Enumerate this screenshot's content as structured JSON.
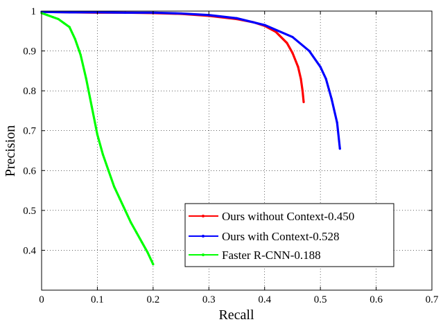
{
  "chart_data": {
    "type": "line",
    "title": "",
    "xlabel": "Recall",
    "ylabel": "Precision",
    "xlim": [
      0,
      0.7
    ],
    "ylim": [
      0.3,
      1.0
    ],
    "x_ticks": [
      "0",
      "0.1",
      "0.2",
      "0.3",
      "0.4",
      "0.5",
      "0.6",
      "0.7"
    ],
    "y_ticks": [
      "0.4",
      "0.5",
      "0.6",
      "0.7",
      "0.8",
      "0.9",
      "1"
    ],
    "grid": true,
    "legend_position": "bottom-right",
    "series": [
      {
        "name": "Ours without Context-0.450",
        "color": "#ff0000",
        "x": [
          0.0,
          0.05,
          0.1,
          0.15,
          0.2,
          0.25,
          0.3,
          0.35,
          0.38,
          0.4,
          0.42,
          0.44,
          0.45,
          0.46,
          0.465,
          0.468,
          0.47
        ],
        "y": [
          0.998,
          0.997,
          0.996,
          0.996,
          0.995,
          0.993,
          0.988,
          0.98,
          0.972,
          0.963,
          0.948,
          0.92,
          0.895,
          0.86,
          0.83,
          0.8,
          0.772
        ]
      },
      {
        "name": "Ours with Context-0.528",
        "color": "#0000ff",
        "x": [
          0.0,
          0.05,
          0.1,
          0.15,
          0.2,
          0.25,
          0.3,
          0.35,
          0.4,
          0.45,
          0.48,
          0.5,
          0.51,
          0.52,
          0.53,
          0.535
        ],
        "y": [
          0.998,
          0.997,
          0.997,
          0.996,
          0.996,
          0.994,
          0.99,
          0.982,
          0.965,
          0.935,
          0.9,
          0.86,
          0.83,
          0.78,
          0.72,
          0.655
        ]
      },
      {
        "name": "Faster R-CNN-0.188",
        "color": "#00ff00",
        "x": [
          0.0,
          0.01,
          0.02,
          0.03,
          0.04,
          0.05,
          0.06,
          0.07,
          0.08,
          0.09,
          0.1,
          0.11,
          0.12,
          0.13,
          0.14,
          0.15,
          0.16,
          0.17,
          0.18,
          0.19,
          0.2
        ],
        "y": [
          0.995,
          0.99,
          0.985,
          0.98,
          0.97,
          0.96,
          0.93,
          0.89,
          0.83,
          0.76,
          0.69,
          0.64,
          0.6,
          0.56,
          0.53,
          0.5,
          0.47,
          0.445,
          0.42,
          0.395,
          0.365
        ]
      }
    ]
  }
}
